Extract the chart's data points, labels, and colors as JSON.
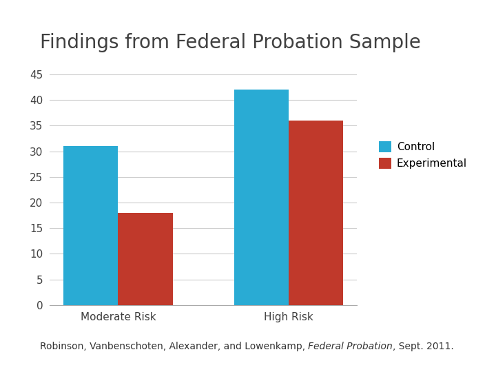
{
  "title": "Findings from Federal Probation Sample",
  "categories": [
    "Moderate Risk",
    "High Risk"
  ],
  "control_values": [
    31,
    42
  ],
  "experimental_values": [
    18,
    36
  ],
  "control_color": "#29ABD4",
  "experimental_color": "#C0392B",
  "ylim": [
    0,
    45
  ],
  "yticks": [
    0,
    5,
    10,
    15,
    20,
    25,
    30,
    35,
    40,
    45
  ],
  "legend_labels": [
    "Control",
    "Experimental"
  ],
  "citation_plain": "Robinson, Vanbenschoten, Alexander, and Lowenkamp, ",
  "citation_italic": "Federal Probation",
  "citation_end": ", Sept. 2011.",
  "background_color": "#ffffff",
  "bar_width": 0.32,
  "title_fontsize": 20,
  "axis_fontsize": 11,
  "legend_fontsize": 11,
  "citation_fontsize": 10,
  "title_color": "#404040",
  "tick_color": "#404040",
  "grid_color": "#cccccc",
  "spine_color": "#aaaaaa"
}
